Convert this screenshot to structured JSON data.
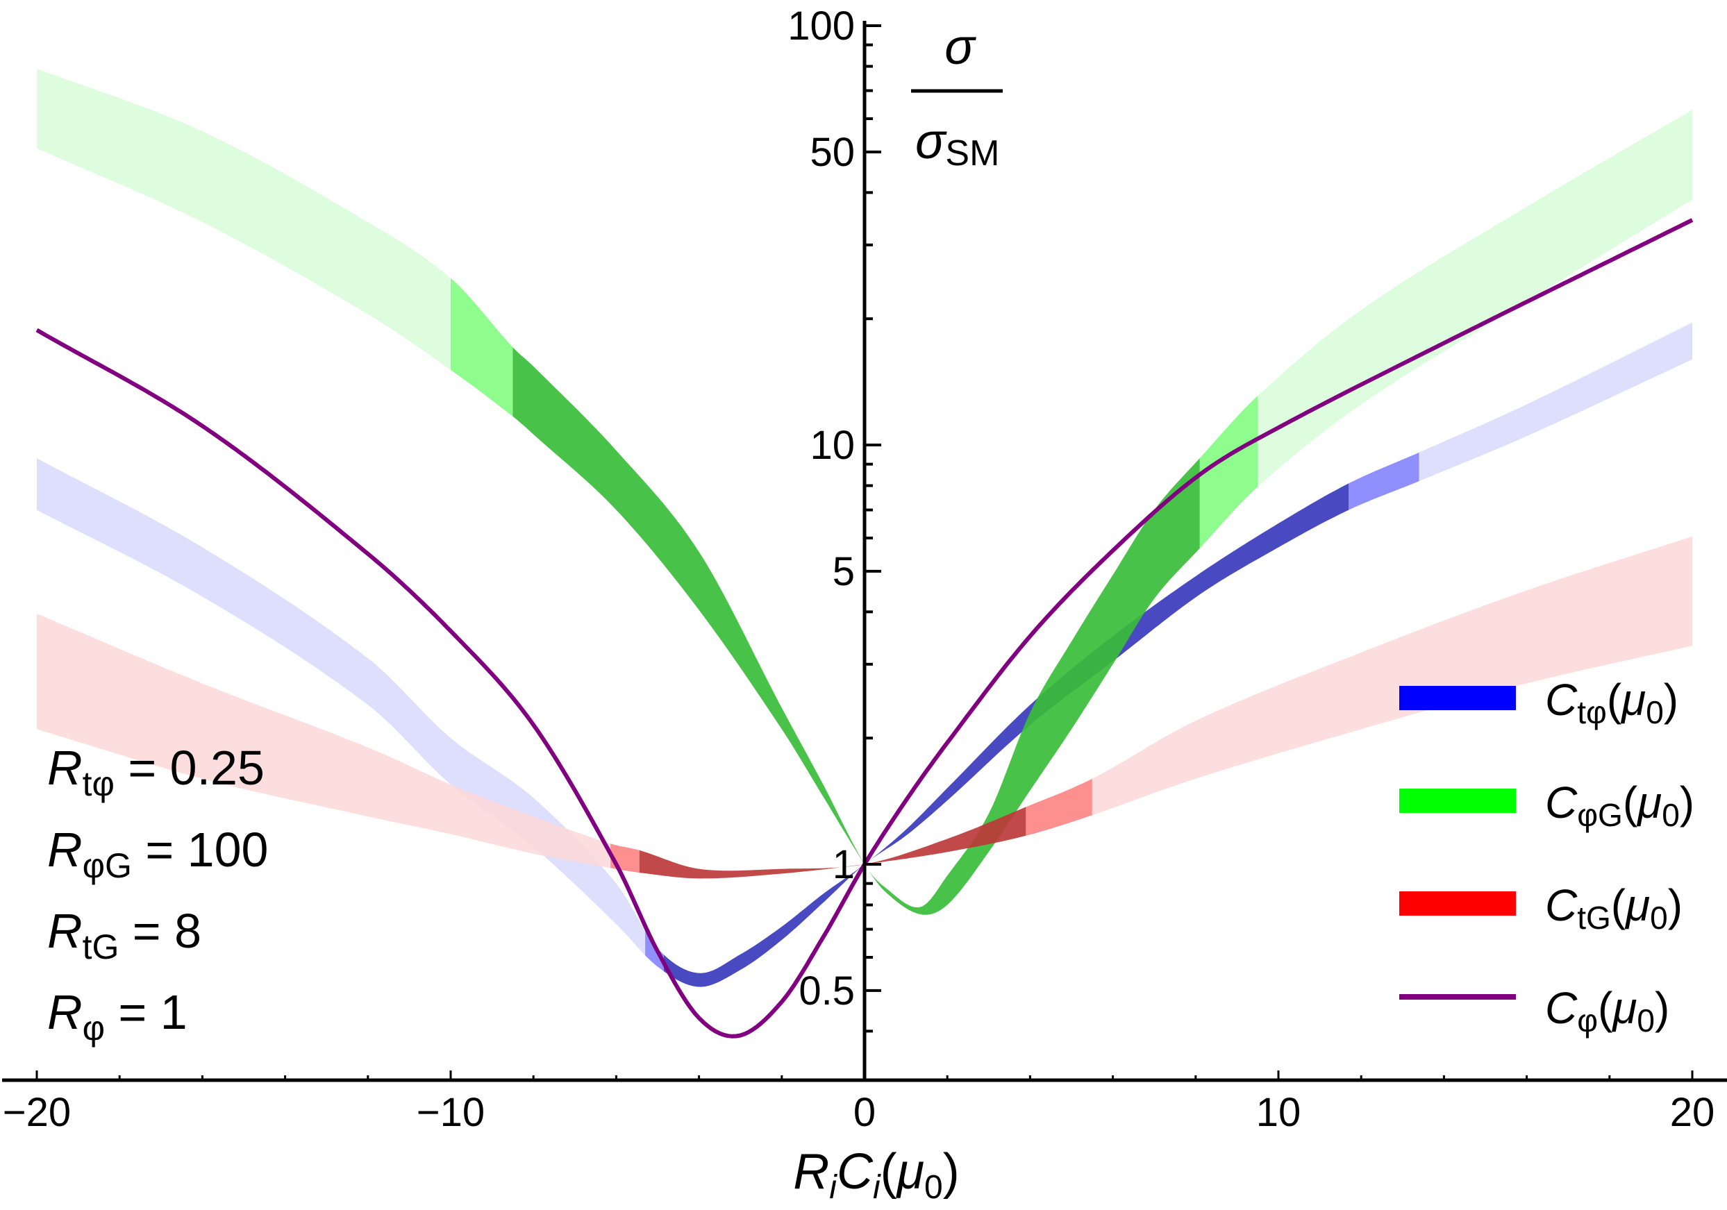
{
  "chart_data": {
    "type": "area",
    "title": "",
    "xlabel": "R_i C_i(μ0)",
    "xlabel_parts": {
      "R": "R",
      "i1": "i",
      "C": "C",
      "i2": "i",
      "open": "(",
      "mu": "μ",
      "zero": "0",
      "close": ")"
    },
    "ylabel": "σ / σ_SM",
    "ylabel_parts": {
      "num": "σ",
      "den": "σ",
      "den_sub": "SM"
    },
    "x_scale": "linear",
    "y_scale": "log",
    "xlim": [
      -21,
      21
    ],
    "ylim": [
      0.305,
      115
    ],
    "x_ticks": [
      {
        "value": -20,
        "label": "−20"
      },
      {
        "value": -10,
        "label": "−10"
      },
      {
        "value": 0,
        "label": "0"
      },
      {
        "value": 10,
        "label": "10"
      },
      {
        "value": 20,
        "label": "20"
      }
    ],
    "x_minor_step": 2,
    "y_ticks": [
      {
        "value": 0.5,
        "label": "0.5"
      },
      {
        "value": 1,
        "label": "1"
      },
      {
        "value": 5,
        "label": "5"
      },
      {
        "value": 10,
        "label": "10"
      },
      {
        "value": 50,
        "label": "50"
      },
      {
        "value": 100,
        "label": "100"
      }
    ],
    "y_minor_ticks": [
      0.4,
      0.6,
      0.7,
      0.8,
      0.9,
      2,
      3,
      4,
      6,
      7,
      8,
      9,
      20,
      30,
      40,
      60,
      70,
      80,
      90
    ],
    "grid": false,
    "legend_position": "bottom-right",
    "series": [
      {
        "name": "C_tφ(μ0)",
        "key": "ctphi",
        "kind": "band",
        "legend_label": {
          "base": "C",
          "sub": "tφ",
          "open": "(",
          "mu": "μ",
          "zero": "0",
          "close": ")"
        },
        "color": "#0000ff",
        "shade_colors": {
          "light": "#d8d8fd",
          "mid": "#8585fd",
          "dark": "#3939bd"
        },
        "mid_ranges": [
          [
            -5.3,
            -4.85
          ],
          [
            11.7,
            13.4
          ]
        ],
        "dark_range": [
          -4.85,
          11.7
        ],
        "x": [
          -20,
          -16,
          -12,
          -10,
          -8,
          -6,
          -5,
          -4,
          -3,
          -2,
          -1,
          0,
          1,
          2,
          4,
          6,
          8.1,
          10,
          11.7,
          13.4,
          16,
          20
        ],
        "lower": [
          7.0,
          4.35,
          2.4,
          1.55,
          1.1,
          0.72,
          0.57,
          0.51,
          0.56,
          0.66,
          0.81,
          1.0,
          1.17,
          1.42,
          2.15,
          3.05,
          4.4,
          5.7,
          7.0,
          8.2,
          10.5,
          16.0
        ],
        "upper": [
          9.3,
          5.7,
          3.1,
          2.0,
          1.44,
          0.9,
          0.63,
          0.55,
          0.61,
          0.71,
          0.85,
          1.0,
          1.21,
          1.52,
          2.4,
          3.5,
          4.94,
          6.5,
          8.1,
          9.6,
          12.5,
          19.6
        ]
      },
      {
        "name": "C_φG(μ0)",
        "key": "cphig",
        "kind": "band",
        "legend_label": {
          "base": "C",
          "sub": "φG",
          "open": "(",
          "mu": "μ",
          "zero": "0",
          "close": ")"
        },
        "color": "#00ff00",
        "shade_colors": {
          "light": "#d8fdd8",
          "mid": "#84fd84",
          "dark": "#39bd39"
        },
        "mid_ranges": [
          [
            -10.0,
            -8.5
          ],
          [
            8.1,
            9.5
          ]
        ],
        "dark_range": [
          -8.5,
          8.1
        ],
        "x": [
          -20,
          -16,
          -12,
          -10,
          -8.5,
          -8,
          -6,
          -4,
          -2,
          -1,
          0,
          0.5,
          1.34,
          2,
          3,
          4,
          5,
          6,
          7,
          8.1,
          9.5,
          12,
          16,
          20
        ],
        "lower": [
          51,
          34,
          20.5,
          15.1,
          11.7,
          10.6,
          7.0,
          4.04,
          2.1,
          1.45,
          1.0,
          0.86,
          0.76,
          0.8,
          1.07,
          1.5,
          2.1,
          3.0,
          4.3,
          5.67,
          7.95,
          12.5,
          22,
          38.5
        ],
        "upper": [
          79,
          56,
          34,
          25,
          17.1,
          15.4,
          9.7,
          5.56,
          2.36,
          1.55,
          1.0,
          0.88,
          0.79,
          0.94,
          1.32,
          2.3,
          3.4,
          4.9,
          7.0,
          9.3,
          13.1,
          21,
          37,
          63
        ]
      },
      {
        "name": "C_tG(μ0)",
        "key": "ctg",
        "kind": "band",
        "legend_label": {
          "base": "C",
          "sub": "tG",
          "open": "(",
          "mu": "μ",
          "zero": "0",
          "close": ")"
        },
        "color": "#ff0000",
        "shade_colors": {
          "light": "#fdd8d8",
          "mid": "#fd8585",
          "dark": "#bd3939"
        },
        "mid_ranges": [
          [
            -6.14,
            -5.44
          ],
          [
            3.9,
            5.5
          ]
        ],
        "dark_range": [
          -5.44,
          3.9
        ],
        "x": [
          -20,
          -16,
          -12,
          -10,
          -8,
          -6.14,
          -5.44,
          -4,
          -2,
          0,
          2,
          3.9,
          5.5,
          8,
          12,
          16,
          20
        ],
        "lower": [
          2.1,
          1.6,
          1.3,
          1.18,
          1.06,
          0.98,
          0.955,
          0.925,
          0.95,
          1.0,
          1.07,
          1.17,
          1.31,
          1.6,
          2.1,
          2.7,
          3.32
        ],
        "upper": [
          3.96,
          2.7,
          1.9,
          1.55,
          1.3,
          1.12,
          1.08,
          0.975,
          0.975,
          1.0,
          1.15,
          1.37,
          1.6,
          2.2,
          3.2,
          4.5,
          6.05
        ]
      },
      {
        "name": "C_φ(μ0)",
        "key": "cphi",
        "kind": "line",
        "legend_label": {
          "base": "C",
          "sub": "φ",
          "open": "(",
          "mu": "μ",
          "zero": "0",
          "close": ")"
        },
        "color": "#800080",
        "x": [
          -20,
          -16,
          -12,
          -10,
          -8,
          -6,
          -5,
          -4,
          -3.04,
          -2,
          -1,
          0,
          1,
          2,
          4,
          6,
          8.1,
          10,
          14,
          20
        ],
        "values": [
          18.8,
          11.1,
          5.5,
          3.6,
          2.15,
          1.0,
          0.62,
          0.43,
          0.39,
          0.47,
          0.67,
          1.0,
          1.42,
          1.95,
          3.5,
          5.6,
          8.5,
          11.0,
          17.5,
          34.4
        ]
      }
    ],
    "annotations": [
      {
        "base": "R",
        "sub": "tφ",
        "eq": " = 0.25"
      },
      {
        "base": "R",
        "sub": "φG",
        "eq": " = 100"
      },
      {
        "base": "R",
        "sub": "tG",
        "eq": " = 8"
      },
      {
        "base": "R",
        "sub": "φ",
        "eq": " = 1"
      }
    ]
  }
}
